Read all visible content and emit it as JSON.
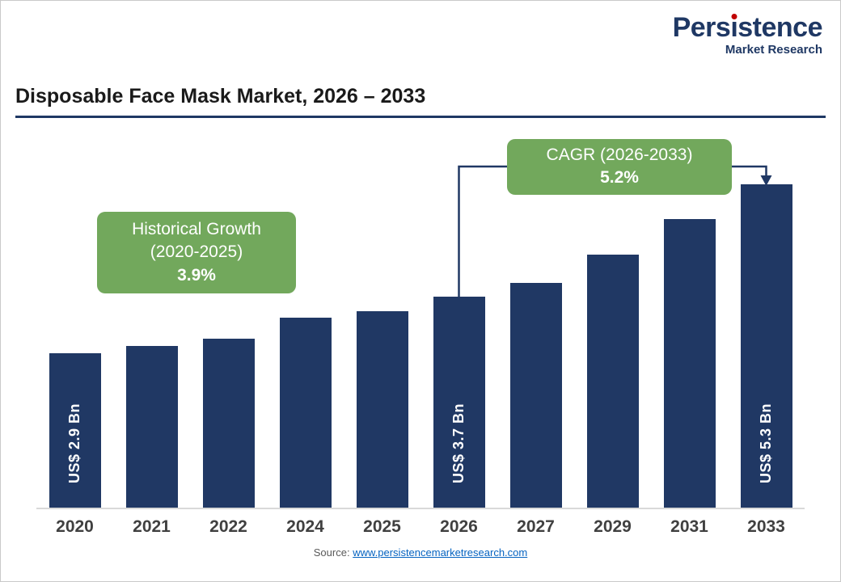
{
  "logo": {
    "name": "Persistence",
    "subtitle": "Market Research",
    "color": "#1f3864",
    "dot_color": "#c00000"
  },
  "header": {
    "title": "Disposable Face Mask Market, 2026 – 2033",
    "underline_color": "#1f3864"
  },
  "annotations": {
    "bg_color": "#72a85c",
    "historical": {
      "line1": "Historical Growth",
      "line2": "(2020-2025)",
      "value": "3.9%"
    },
    "cagr": {
      "line1": "CAGR (2026-2033)",
      "value": "5.2%"
    }
  },
  "chart_data": {
    "type": "bar",
    "title": "Disposable Face Mask Market, 2026 – 2033",
    "categories": [
      "2020",
      "2021",
      "2022",
      "2024",
      "2025",
      "2026",
      "2027",
      "2029",
      "2031",
      "2033"
    ],
    "values": [
      2.9,
      3.0,
      3.1,
      3.4,
      3.5,
      3.7,
      3.9,
      4.3,
      4.8,
      5.3
    ],
    "unit": "US$ Bn",
    "bar_labels": {
      "2020": "US$ 2.9 Bn",
      "2026": "US$ 3.7 Bn",
      "2033": "US$ 5.3 Bn"
    },
    "bar_color": "#203864",
    "ylim": [
      0.7,
      5.3
    ],
    "grid": false,
    "legend": "none",
    "annotations": [
      "Historical Growth (2020-2025) 3.9%",
      "CAGR (2026-2033) 5.2%"
    ]
  },
  "footer": {
    "source_label": "Source:",
    "source_link": "www.persistencemarketresearch.com",
    "link_color": "#0563c1"
  }
}
